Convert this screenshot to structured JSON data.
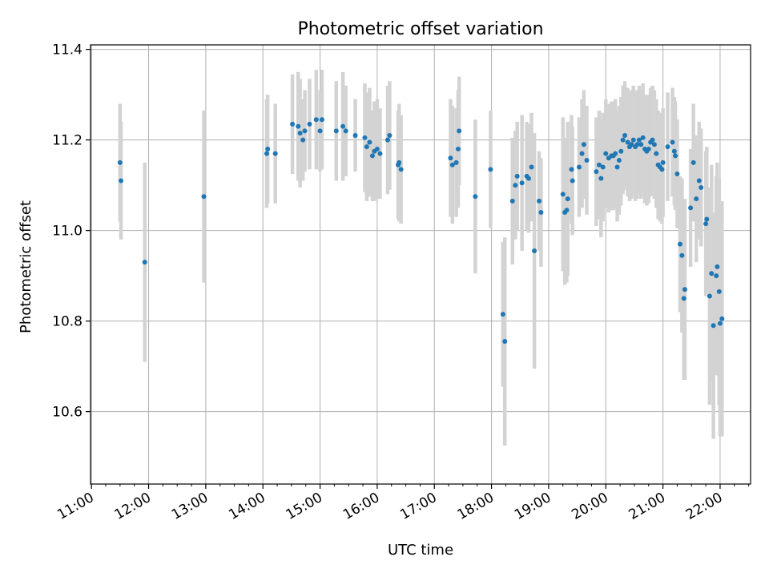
{
  "chart_data": {
    "type": "scatter",
    "title": "Photometric offset variation",
    "xlabel": "UTC time",
    "ylabel": "Photometric offset",
    "x_is_time": true,
    "xlim": [
      "10:59",
      "22:32"
    ],
    "ylim": [
      10.44,
      11.41
    ],
    "grid": true,
    "x_ticks": [
      "11:00",
      "12:00",
      "13:00",
      "14:00",
      "15:00",
      "16:00",
      "17:00",
      "18:00",
      "19:00",
      "20:00",
      "21:00",
      "22:00"
    ],
    "y_ticks": [
      10.6,
      10.8,
      11.0,
      11.2,
      11.4
    ],
    "y_tick_labels": [
      "10.6",
      "10.8",
      "11.0",
      "11.2",
      "11.4"
    ],
    "colors": {
      "point": "#1f77b4",
      "errorbar": "#d3d3d3",
      "grid": "#b0b0b0"
    },
    "points": [
      [
        "11:30",
        11.15,
        0.13
      ],
      [
        "11:31",
        11.11,
        0.13
      ],
      [
        "11:56",
        10.93,
        0.22
      ],
      [
        "12:58",
        11.075,
        0.19
      ],
      [
        "14:04",
        11.17,
        0.12
      ],
      [
        "14:05",
        11.18,
        0.12
      ],
      [
        "14:13",
        11.17,
        0.11
      ],
      [
        "14:31",
        11.235,
        0.11
      ],
      [
        "14:37",
        11.23,
        0.12
      ],
      [
        "14:39",
        11.215,
        0.12
      ],
      [
        "14:42",
        11.2,
        0.09
      ],
      [
        "14:44",
        11.22,
        0.09
      ],
      [
        "14:49",
        11.235,
        0.1
      ],
      [
        "14:56",
        11.245,
        0.11
      ],
      [
        "15:00",
        11.22,
        0.09
      ],
      [
        "15:02",
        11.245,
        0.11
      ],
      [
        "15:17",
        11.22,
        0.11
      ],
      [
        "15:24",
        11.23,
        0.12
      ],
      [
        "15:27",
        11.22,
        0.1
      ],
      [
        "15:37",
        11.21,
        0.08
      ],
      [
        "15:47",
        11.205,
        0.12
      ],
      [
        "15:49",
        11.185,
        0.12
      ],
      [
        "15:52",
        11.195,
        0.12
      ],
      [
        "15:55",
        11.165,
        0.1
      ],
      [
        "15:57",
        11.175,
        0.11
      ],
      [
        "16:00",
        11.18,
        0.11
      ],
      [
        "16:03",
        11.17,
        0.1
      ],
      [
        "16:11",
        11.2,
        0.12
      ],
      [
        "16:13",
        11.21,
        0.12
      ],
      [
        "16:22",
        11.145,
        0.12
      ],
      [
        "16:23",
        11.15,
        0.13
      ],
      [
        "16:25",
        11.135,
        0.12
      ],
      [
        "17:17",
        11.16,
        0.13
      ],
      [
        "17:19",
        11.145,
        0.13
      ],
      [
        "17:23",
        11.15,
        0.12
      ],
      [
        "17:25",
        11.18,
        0.13
      ],
      [
        "17:26",
        11.22,
        0.12
      ],
      [
        "17:43",
        11.075,
        0.17
      ],
      [
        "17:59",
        11.135,
        0.13
      ],
      [
        "18:12",
        10.815,
        0.16
      ],
      [
        "18:14",
        10.755,
        0.23
      ],
      [
        "18:22",
        11.065,
        0.14
      ],
      [
        "18:25",
        11.1,
        0.12
      ],
      [
        "18:27",
        11.12,
        0.12
      ],
      [
        "18:32",
        11.105,
        0.15
      ],
      [
        "18:37",
        11.12,
        0.12
      ],
      [
        "18:39",
        11.115,
        0.12
      ],
      [
        "18:42",
        11.14,
        0.12
      ],
      [
        "18:45",
        10.955,
        0.26
      ],
      [
        "18:50",
        11.065,
        0.11
      ],
      [
        "18:52",
        11.04,
        0.12
      ],
      [
        "19:15",
        11.08,
        0.17
      ],
      [
        "19:17",
        11.04,
        0.16
      ],
      [
        "19:19",
        11.045,
        0.16
      ],
      [
        "19:20",
        11.07,
        0.17
      ],
      [
        "19:24",
        11.135,
        0.12
      ],
      [
        "19:25",
        11.11,
        0.12
      ],
      [
        "19:32",
        11.14,
        0.11
      ],
      [
        "19:35",
        11.17,
        0.12
      ],
      [
        "19:37",
        11.19,
        0.12
      ],
      [
        "19:40",
        11.155,
        0.12
      ],
      [
        "19:50",
        11.13,
        0.12
      ],
      [
        "19:53",
        11.145,
        0.12
      ],
      [
        "19:55",
        11.115,
        0.13
      ],
      [
        "19:57",
        11.14,
        0.12
      ],
      [
        "20:00",
        11.17,
        0.12
      ],
      [
        "20:03",
        11.16,
        0.12
      ],
      [
        "20:06",
        11.165,
        0.12
      ],
      [
        "20:08",
        11.165,
        0.12
      ],
      [
        "20:10",
        11.17,
        0.12
      ],
      [
        "20:12",
        11.14,
        0.12
      ],
      [
        "20:14",
        11.155,
        0.12
      ],
      [
        "20:16",
        11.175,
        0.12
      ],
      [
        "20:18",
        11.2,
        0.12
      ],
      [
        "20:20",
        11.21,
        0.12
      ],
      [
        "20:23",
        11.195,
        0.12
      ],
      [
        "20:25",
        11.185,
        0.12
      ],
      [
        "20:27",
        11.19,
        0.12
      ],
      [
        "20:29",
        11.2,
        0.12
      ],
      [
        "20:31",
        11.185,
        0.12
      ],
      [
        "20:33",
        11.19,
        0.12
      ],
      [
        "20:35",
        11.2,
        0.12
      ],
      [
        "20:37",
        11.19,
        0.12
      ],
      [
        "20:39",
        11.205,
        0.12
      ],
      [
        "20:41",
        11.18,
        0.12
      ],
      [
        "20:43",
        11.175,
        0.12
      ],
      [
        "20:45",
        11.18,
        0.12
      ],
      [
        "20:47",
        11.195,
        0.12
      ],
      [
        "20:49",
        11.2,
        0.12
      ],
      [
        "20:51",
        11.19,
        0.12
      ],
      [
        "20:53",
        11.17,
        0.12
      ],
      [
        "20:55",
        11.145,
        0.12
      ],
      [
        "20:57",
        11.14,
        0.12
      ],
      [
        "20:59",
        11.135,
        0.12
      ],
      [
        "21:00",
        11.15,
        0.12
      ],
      [
        "21:05",
        11.185,
        0.12
      ],
      [
        "21:10",
        11.195,
        0.12
      ],
      [
        "21:12",
        11.175,
        0.12
      ],
      [
        "21:13",
        11.165,
        0.12
      ],
      [
        "21:15",
        11.125,
        0.12
      ],
      [
        "21:18",
        10.97,
        0.15
      ],
      [
        "21:20",
        10.945,
        0.17
      ],
      [
        "21:22",
        10.85,
        0.18
      ],
      [
        "21:23",
        10.87,
        0.2
      ],
      [
        "21:29",
        11.05,
        0.13
      ],
      [
        "21:32",
        11.15,
        0.13
      ],
      [
        "21:35",
        11.07,
        0.14
      ],
      [
        "21:38",
        11.11,
        0.13
      ],
      [
        "21:40",
        11.095,
        0.13
      ],
      [
        "21:45",
        11.015,
        0.16
      ],
      [
        "21:46",
        11.025,
        0.16
      ],
      [
        "21:49",
        10.855,
        0.24
      ],
      [
        "21:51",
        10.905,
        0.24
      ],
      [
        "21:53",
        10.79,
        0.25
      ],
      [
        "21:56",
        10.9,
        0.22
      ],
      [
        "21:57",
        10.92,
        0.23
      ],
      [
        "21:59",
        10.865,
        0.25
      ],
      [
        "22:00",
        10.795,
        0.25
      ],
      [
        "22:02",
        10.805,
        0.26
      ]
    ]
  }
}
